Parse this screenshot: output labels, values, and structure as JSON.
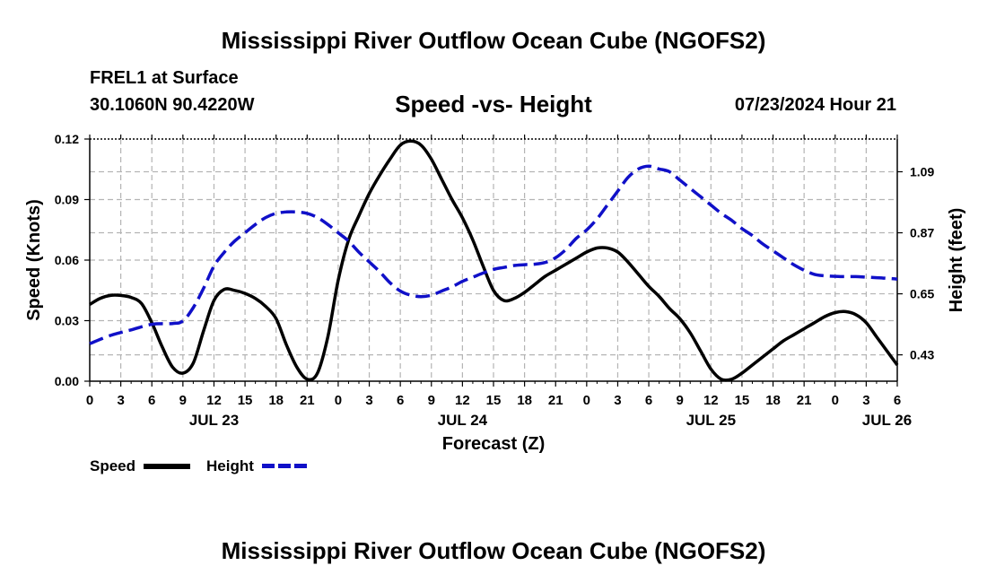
{
  "header": {
    "title": "Mississippi River Outflow Ocean Cube (NGOFS2)",
    "station": "FREL1 at Surface",
    "coords": "30.1060N  90.4220W",
    "subtitle": "Speed -vs- Height",
    "datetime": "07/23/2024 Hour 21"
  },
  "footer": {
    "title": "Mississippi River Outflow Ocean Cube (NGOFS2)"
  },
  "legend": {
    "speed_label": "Speed",
    "height_label": "Height"
  },
  "colors": {
    "speed": "#000000",
    "height": "#1010c8",
    "grid": "#b4b4b4"
  },
  "chart_data": {
    "type": "line",
    "title": "Speed -vs- Height",
    "xlabel": "Forecast (Z)",
    "ylabel": "Speed (Knots)",
    "y2label": "Height (feet)",
    "x_unit": "hours since 2024-07-23 00Z",
    "xlim": [
      0,
      78
    ],
    "ylim": [
      0,
      0.12
    ],
    "y2lim": [
      0.335,
      1.208
    ],
    "x_ticks": [
      0,
      3,
      6,
      9,
      12,
      15,
      18,
      21,
      24,
      27,
      30,
      33,
      36,
      39,
      42,
      45,
      48,
      51,
      54,
      57,
      60,
      63,
      66,
      69,
      72,
      75,
      78
    ],
    "x_tick_labels": [
      "0",
      "3",
      "6",
      "9",
      "12",
      "15",
      "18",
      "21",
      "0",
      "3",
      "6",
      "9",
      "12",
      "15",
      "18",
      "21",
      "0",
      "3",
      "6",
      "9",
      "12",
      "15",
      "18",
      "21",
      "0",
      "3",
      "6"
    ],
    "date_labels": [
      {
        "label": "JUL 23",
        "x": 12
      },
      {
        "label": "JUL 24",
        "x": 36
      },
      {
        "label": "JUL 25",
        "x": 60
      },
      {
        "label": "JUL 26",
        "x": 77
      }
    ],
    "y_ticks": [
      0.0,
      0.03,
      0.06,
      0.09,
      0.12
    ],
    "y_tick_labels": [
      "0.00",
      "0.03",
      "0.06",
      "0.09",
      "0.12"
    ],
    "y2_ticks": [
      0.43,
      0.65,
      0.87,
      1.09
    ],
    "y2_tick_labels": [
      "0.43",
      "0.65",
      "0.87",
      "1.09"
    ],
    "grid": true,
    "series": [
      {
        "name": "Speed",
        "axis": "left",
        "style": "solid",
        "x": [
          0,
          1,
          2,
          3,
          4,
          5,
          6,
          7,
          8,
          9,
          10,
          11,
          12,
          13,
          14,
          15,
          16,
          17,
          18,
          19,
          20,
          21,
          22,
          23,
          24,
          25,
          26,
          27,
          28,
          29,
          30,
          31,
          32,
          33,
          34,
          35,
          36,
          37,
          38,
          39,
          40,
          41,
          42,
          43,
          44,
          45,
          46,
          47,
          48,
          49,
          50,
          51,
          52,
          53,
          54,
          55,
          56,
          57,
          58,
          59,
          60,
          61,
          62,
          63,
          64,
          65,
          66,
          67,
          68,
          69,
          70,
          71,
          72,
          73,
          74,
          75,
          76,
          77,
          78
        ],
        "values": [
          0.038,
          0.041,
          0.0425,
          0.0425,
          0.0415,
          0.0385,
          0.029,
          0.017,
          0.007,
          0.004,
          0.009,
          0.025,
          0.04,
          0.0455,
          0.045,
          0.0435,
          0.041,
          0.037,
          0.031,
          0.018,
          0.007,
          0.001,
          0.004,
          0.022,
          0.05,
          0.07,
          0.082,
          0.093,
          0.102,
          0.11,
          0.117,
          0.119,
          0.117,
          0.11,
          0.1,
          0.09,
          0.081,
          0.07,
          0.057,
          0.045,
          0.04,
          0.041,
          0.044,
          0.048,
          0.052,
          0.055,
          0.058,
          0.061,
          0.064,
          0.066,
          0.066,
          0.064,
          0.059,
          0.053,
          0.047,
          0.042,
          0.036,
          0.031,
          0.024,
          0.015,
          0.006,
          0.001,
          0.001,
          0.004,
          0.008,
          0.012,
          0.016,
          0.02,
          0.023,
          0.026,
          0.029,
          0.032,
          0.034,
          0.0345,
          0.033,
          0.029,
          0.022,
          0.015,
          0.008
        ]
      },
      {
        "name": "Height",
        "axis": "right",
        "style": "dashed",
        "x": [
          0,
          2,
          4,
          6,
          8,
          9,
          10,
          11,
          12,
          13,
          14,
          15,
          16,
          17,
          18,
          19,
          20,
          21,
          22,
          23,
          24,
          25,
          26,
          27,
          28,
          29,
          30,
          31,
          32,
          33,
          34,
          35,
          36,
          37,
          38,
          39,
          40,
          41,
          42,
          43,
          44,
          45,
          46,
          47,
          48,
          49,
          50,
          51,
          52,
          53,
          54,
          55,
          56,
          57,
          58,
          59,
          60,
          61,
          62,
          63,
          64,
          65,
          66,
          67,
          68,
          69,
          70,
          71,
          72,
          73,
          74,
          75,
          76,
          77,
          78
        ],
        "values": [
          0.47,
          0.5,
          0.52,
          0.54,
          0.543,
          0.552,
          0.6,
          0.67,
          0.75,
          0.8,
          0.84,
          0.87,
          0.9,
          0.925,
          0.94,
          0.945,
          0.945,
          0.94,
          0.925,
          0.9,
          0.87,
          0.84,
          0.8,
          0.765,
          0.73,
          0.69,
          0.66,
          0.645,
          0.64,
          0.645,
          0.66,
          0.675,
          0.695,
          0.71,
          0.725,
          0.738,
          0.745,
          0.752,
          0.755,
          0.757,
          0.763,
          0.78,
          0.81,
          0.85,
          0.88,
          0.92,
          0.97,
          1.02,
          1.07,
          1.1,
          1.11,
          1.1,
          1.09,
          1.06,
          1.03,
          1,
          0.97,
          0.94,
          0.915,
          0.885,
          0.86,
          0.83,
          0.805,
          0.78,
          0.755,
          0.735,
          0.72,
          0.715,
          0.713,
          0.712,
          0.712,
          0.71,
          0.708,
          0.706,
          0.703
        ]
      }
    ]
  }
}
